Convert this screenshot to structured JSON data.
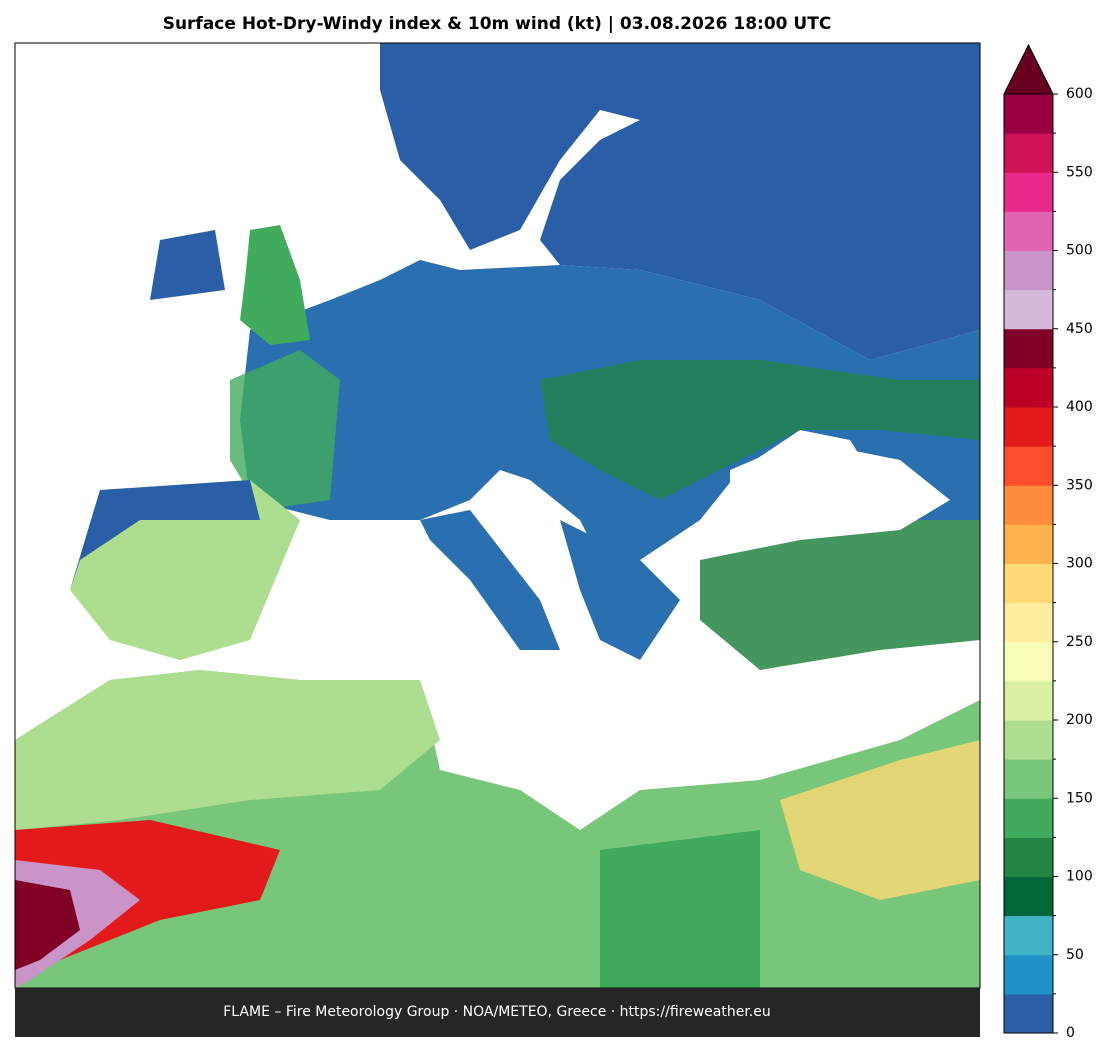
{
  "title": "Surface Hot-Dry-Windy index & 10m wind (kt)  |  03.08.2026 18:00 UTC",
  "footer": "FLAME – Fire Meteorology Group · NOA/METEO, Greece · https://fireweather.eu",
  "colorbar": {
    "ticks": [
      0,
      50,
      100,
      150,
      200,
      250,
      300,
      350,
      400,
      450,
      500,
      550,
      600
    ],
    "colors": [
      "#2a5fa8",
      "#2090c8",
      "#40b4c4",
      "#006837",
      "#238443",
      "#41ab5d",
      "#78c679",
      "#addd8e",
      "#d9f0a3",
      "#f7fcb9",
      "#ffeda0",
      "#fed976",
      "#feb24c",
      "#fd8d3c",
      "#fc4e2a",
      "#e31a1c",
      "#bd0026",
      "#800026",
      "#d4b9da",
      "#c994c7",
      "#df65b0",
      "#e7298a",
      "#ce1256",
      "#980043"
    ],
    "extend_color": "#67001f"
  }
}
